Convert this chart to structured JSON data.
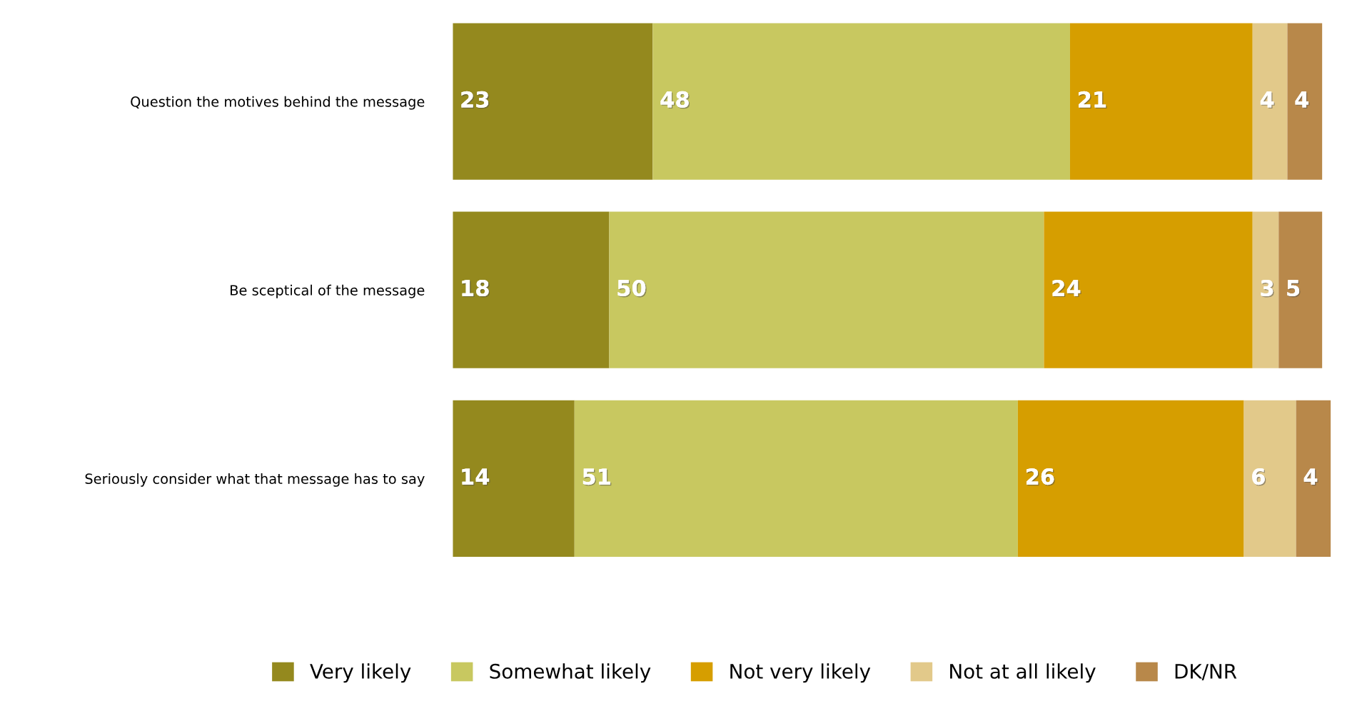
{
  "chart_data": {
    "type": "bar",
    "orientation": "horizontal",
    "stacked": true,
    "data_labels": true,
    "legend": "bottom",
    "grid": false,
    "tick_labels": "y",
    "categories": [
      "Question the motives behind the message",
      "Be sceptical of the message",
      "Seriously consider what that message has to say"
    ],
    "series": [
      {
        "name": "Very likely",
        "color": "#94891e",
        "values": [
          23,
          18,
          14
        ]
      },
      {
        "name": "Somewhat likely",
        "color": "#c8c860",
        "values": [
          48,
          50,
          51
        ]
      },
      {
        "name": "Not very likely",
        "color": "#d69e00",
        "values": [
          21,
          24,
          26
        ]
      },
      {
        "name": "Not at all likely",
        "color": "#e2c98a",
        "values": [
          4,
          3,
          6
        ]
      },
      {
        "name": "DK/NR",
        "color": "#b8884a",
        "values": [
          4,
          5,
          4
        ]
      }
    ]
  }
}
